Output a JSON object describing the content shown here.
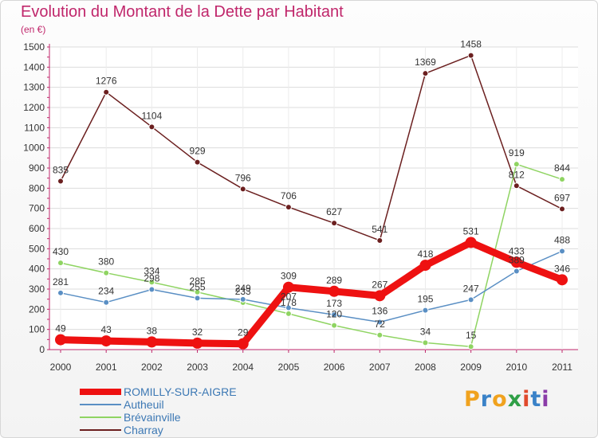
{
  "header": {
    "title": "Evolution du Montant de la Dette par Habitant",
    "unit": "(en €)"
  },
  "logo": {
    "letters": [
      "P",
      "r",
      "o",
      "x",
      "i",
      "t",
      "i"
    ],
    "colors": [
      "#f0a21e",
      "#3a82c8",
      "#f0a21e",
      "#2f9f46",
      "#e04a2c",
      "#3a82c8",
      "#8a3ca8"
    ]
  },
  "chart_data": {
    "type": "line",
    "title": "Evolution du Montant de la Dette par Habitant",
    "ylabel": "(en €)",
    "xlabel": "",
    "x": [
      "2000",
      "2001",
      "2002",
      "2003",
      "2004",
      "2005",
      "2006",
      "2007",
      "2008",
      "2009",
      "2010",
      "2011"
    ],
    "ylim": [
      0,
      1500
    ],
    "yticks": [
      0,
      100,
      200,
      300,
      400,
      500,
      600,
      700,
      800,
      900,
      1000,
      1100,
      1200,
      1300,
      1400,
      1500
    ],
    "grid": true,
    "legend_position": "bottom-left",
    "series": [
      {
        "name": "ROMILLY-SUR-AIGRE",
        "color": "#ee1111",
        "values": [
          49,
          43,
          38,
          32,
          29,
          309,
          289,
          267,
          418,
          531,
          433,
          346
        ]
      },
      {
        "name": "Autheuil",
        "color": "#5a8fc4",
        "values": [
          281,
          234,
          298,
          255,
          249,
          207,
          173,
          136,
          195,
          247,
          389,
          488
        ]
      },
      {
        "name": "Brévainville",
        "color": "#8fd462",
        "values": [
          430,
          380,
          334,
          285,
          233,
          178,
          120,
          72,
          34,
          15,
          919,
          844
        ]
      },
      {
        "name": "Charray",
        "color": "#6b1f1f",
        "values": [
          835,
          1276,
          1104,
          929,
          796,
          706,
          627,
          541,
          1369,
          1458,
          812,
          697
        ]
      }
    ]
  }
}
